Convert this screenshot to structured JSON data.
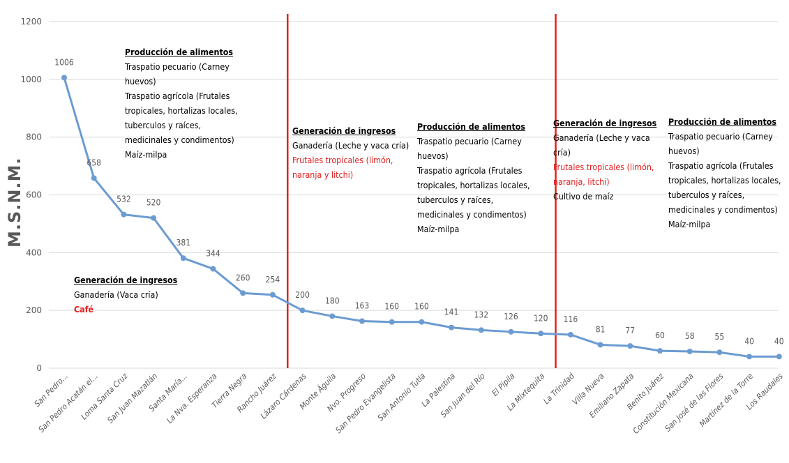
{
  "chart_data": {
    "type": "line",
    "ylabel": "M.S.N.M.",
    "xlabel": "",
    "ylim": [
      0,
      1200
    ],
    "yticks": [
      "0",
      "200",
      "400",
      "600",
      "800",
      "1000",
      "1200"
    ],
    "grid": true,
    "categories": [
      "San Pedro...",
      "San Pedro Acatán el...",
      "Loma Santa Cruz",
      "San Juan Mazatlán",
      "Santa María...",
      "La Nva. Esperanza",
      "Tierra Negra",
      "Rancho Juárez",
      "Lázaro Cárdenas",
      "Monte Águila",
      "Nvo. Progreso",
      "San Pedro Evangelista",
      "San Antonio Tutla",
      "La Palestina",
      "San Juan del Río",
      "El Pípila",
      "La Mixtequita",
      "La Trinidad",
      "Villa Nueva",
      "Emiliano Zapata",
      "Benito Juárez",
      "Constitución Mexicana",
      "San José de las Flores",
      "Martínez de la Torre",
      "Los Raudales"
    ],
    "values": [
      1006,
      658,
      532,
      520,
      381,
      344,
      260,
      254,
      200,
      180,
      163,
      160,
      160,
      141,
      132,
      126,
      120,
      116,
      81,
      77,
      60,
      58,
      55,
      40,
      40
    ],
    "data_labels": [
      "1006",
      "658",
      "532",
      "520",
      "381",
      "344",
      "260",
      "254",
      "200",
      "180",
      "163",
      "160",
      "160",
      "141",
      "132",
      "126",
      "120",
      "116",
      "81",
      "77",
      "60",
      "58",
      "55",
      "40",
      "40"
    ],
    "series_color": "#6b9bd1",
    "divider_color": "#e02020",
    "dividers_after_category": [
      "Rancho Juárez",
      "La Mixtequita"
    ]
  },
  "annotations": {
    "zone1_food": {
      "heading": "Producción de alimentos",
      "line1": "Traspatio pecuario (Carney",
      "line2": "huevos)",
      "line3": "Traspatio agrícola (Frutales",
      "line4": "tropicales, hortalizas locales,",
      "line5": "tuberculos y raíces,",
      "line6": "medicinales y condimentos)",
      "line7": "Maíz-milpa"
    },
    "zone1_income": {
      "heading": "Generación de ingresos",
      "line1": "Ganadería (Vaca cría)",
      "line2": "Café"
    },
    "zone2_income": {
      "heading": "Generación de ingresos",
      "line1": "Ganadería (Leche y vaca cría)",
      "line2": "Frutales tropicales (limón,",
      "line3": "naranja y litchi)"
    },
    "zone2_food": {
      "heading": "Producción de alimentos",
      "line1": "Traspatio pecuario (Carney",
      "line2": "huevos)",
      "line3": "Traspatio agrícola (Frutales",
      "line4": "tropicales, hortalizas locales,",
      "line5": "tuberculos y raíces,",
      "line6": "medicinales y condimentos)",
      "line7": "Maíz-milpa"
    },
    "zone3_income": {
      "heading": "Generación de ingresos",
      "line1": "Ganadería (Leche y vaca cría)",
      "line2": "Frutales tropicales (limón,",
      "line3": "naranja, litchi)",
      "line4": "Cultivo de maíz"
    },
    "zone3_food": {
      "heading": "Producción de alimentos",
      "line1": "Traspatio pecuario (Carney",
      "line2": "huevos)",
      "line3": "Traspatio agrícola (Frutales",
      "line4": "tropicales, hortalizas locales,",
      "line5": "tuberculos y raíces,",
      "line6": "medicinales y condimentos)",
      "line7": "Maíz-milpa"
    }
  }
}
